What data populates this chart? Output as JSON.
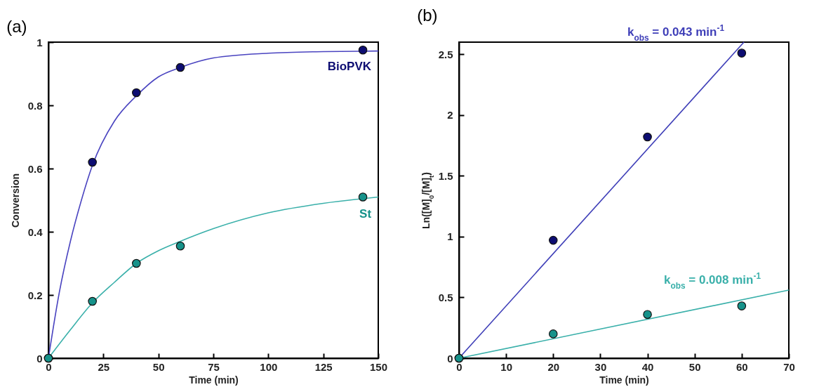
{
  "chart_data": [
    {
      "type": "scatter",
      "title": "(a)",
      "xlabel": "Time (min)",
      "ylabel": "Conversion",
      "xlim": [
        0,
        150
      ],
      "ylim": [
        0,
        1
      ],
      "xticks": [
        0,
        25,
        50,
        75,
        100,
        125,
        150
      ],
      "yticks": [
        0,
        0.2,
        0.4,
        0.6,
        0.8,
        1
      ],
      "series": [
        {
          "type": "line",
          "color": "#4a44c0",
          "marker": "none",
          "x": [
            0,
            5,
            10,
            15,
            20,
            30,
            40,
            50,
            60,
            75,
            100,
            125,
            150
          ],
          "values": [
            0,
            0.21,
            0.37,
            0.5,
            0.61,
            0.75,
            0.83,
            0.89,
            0.92,
            0.95,
            0.965,
            0.97,
            0.972
          ]
        },
        {
          "type": "line",
          "color": "#3ab0aa",
          "marker": "none",
          "x": [
            0,
            10,
            20,
            30,
            40,
            50,
            60,
            75,
            100,
            125,
            150
          ],
          "values": [
            0,
            0.09,
            0.175,
            0.24,
            0.3,
            0.34,
            0.37,
            0.41,
            0.46,
            0.49,
            0.51
          ]
        },
        {
          "name": "BioPVK",
          "color": "#0d0d72",
          "marker": "circle",
          "x": [
            0,
            20,
            40,
            60,
            143
          ],
          "values": [
            0,
            0.62,
            0.84,
            0.92,
            0.975
          ]
        },
        {
          "name": "St",
          "color": "#16928a",
          "marker": "circle",
          "x": [
            0,
            20,
            40,
            60,
            143
          ],
          "values": [
            0,
            0.18,
            0.3,
            0.355,
            0.51
          ]
        }
      ]
    },
    {
      "type": "scatter",
      "title": "(b)",
      "xlabel": "Time (min)",
      "ylabel": "Ln([M]$_{0}$/[M]$_{t}$)",
      "xlim": [
        0,
        70
      ],
      "ylim": [
        0,
        2.6
      ],
      "xticks": [
        0,
        10,
        20,
        30,
        40,
        50,
        60,
        70
      ],
      "yticks": [
        0,
        0.5,
        1,
        1.5,
        2,
        2.5
      ],
      "series": [
        {
          "name": "k$_{obs}$ = 0.043 min$^{-1}$",
          "type": "line",
          "color": "#3f3fb8",
          "marker": "none",
          "x": [
            0,
            60.47
          ],
          "values": [
            0,
            2.6
          ]
        },
        {
          "name": "k$_{obs}$ = 0.008 min$^{-1}$",
          "type": "line",
          "color": "#3ab0aa",
          "marker": "none",
          "x": [
            0,
            70
          ],
          "values": [
            0,
            0.56
          ]
        },
        {
          "color": "#0d0d72",
          "marker": "circle",
          "x": [
            0,
            20,
            40,
            60
          ],
          "values": [
            0,
            0.97,
            1.82,
            2.51
          ]
        },
        {
          "color": "#16928a",
          "marker": "circle",
          "x": [
            0,
            20,
            40,
            60
          ],
          "values": [
            0,
            0.2,
            0.36,
            0.43
          ]
        }
      ]
    }
  ]
}
